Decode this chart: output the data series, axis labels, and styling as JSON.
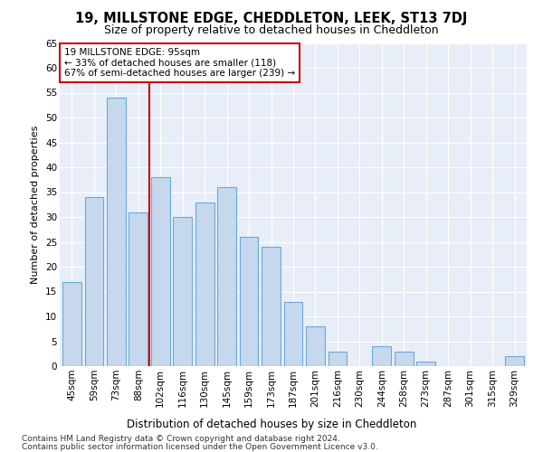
{
  "title": "19, MILLSTONE EDGE, CHEDDLETON, LEEK, ST13 7DJ",
  "subtitle": "Size of property relative to detached houses in Cheddleton",
  "xlabel": "Distribution of detached houses by size in Cheddleton",
  "ylabel": "Number of detached properties",
  "categories": [
    "45sqm",
    "59sqm",
    "73sqm",
    "88sqm",
    "102sqm",
    "116sqm",
    "130sqm",
    "145sqm",
    "159sqm",
    "173sqm",
    "187sqm",
    "201sqm",
    "216sqm",
    "230sqm",
    "244sqm",
    "258sqm",
    "273sqm",
    "287sqm",
    "301sqm",
    "315sqm",
    "329sqm"
  ],
  "values": [
    17,
    34,
    54,
    31,
    38,
    30,
    33,
    36,
    26,
    24,
    13,
    8,
    3,
    0,
    4,
    3,
    1,
    0,
    0,
    0,
    2
  ],
  "bar_color": "#c5d8ee",
  "bar_edge_color": "#6aaad4",
  "vline_color": "#cc0000",
  "vline_pos": 3.5,
  "annotation_text": "19 MILLSTONE EDGE: 95sqm\n← 33% of detached houses are smaller (118)\n67% of semi-detached houses are larger (239) →",
  "annotation_box_color": "#ffffff",
  "annotation_box_edge_color": "#cc0000",
  "ylim": [
    0,
    65
  ],
  "yticks": [
    0,
    5,
    10,
    15,
    20,
    25,
    30,
    35,
    40,
    45,
    50,
    55,
    60,
    65
  ],
  "footnote1": "Contains HM Land Registry data © Crown copyright and database right 2024.",
  "footnote2": "Contains public sector information licensed under the Open Government Licence v3.0.",
  "fig_bg_color": "#ffffff",
  "plot_bg_color": "#e8eef8",
  "grid_color": "#ffffff",
  "title_fontsize": 10.5,
  "subtitle_fontsize": 9,
  "ylabel_fontsize": 8,
  "xlabel_fontsize": 8.5,
  "tick_fontsize": 7.5,
  "annotation_fontsize": 7.5,
  "footnote_fontsize": 6.5
}
